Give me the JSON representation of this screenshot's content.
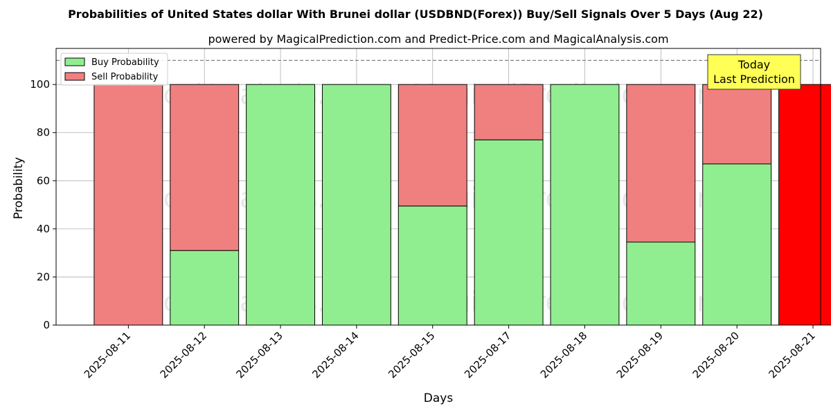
{
  "chart_data": {
    "type": "bar",
    "title": "Probabilities of United States dollar With Brunei dollar (USDBND(Forex)) Buy/Sell Signals Over 5 Days (Aug 22)",
    "subtitle": "powered by MagicalPrediction.com and Predict-Price.com and MagicalAnalysis.com",
    "xlabel": "Days",
    "ylabel": "Probability",
    "ylim": [
      0,
      115
    ],
    "yticks": [
      0,
      20,
      40,
      60,
      80,
      100
    ],
    "categories": [
      "2025-08-11",
      "2025-08-12",
      "2025-08-13",
      "2025-08-14",
      "2025-08-15",
      "2025-08-17",
      "2025-08-18",
      "2025-08-19",
      "2025-08-20",
      "2025-08-21"
    ],
    "series": [
      {
        "name": "Buy Probability",
        "color": "#90ee90",
        "values": [
          0,
          31,
          100,
          100,
          49.5,
          77,
          100,
          34.5,
          67,
          0
        ]
      },
      {
        "name": "Sell Probability",
        "color": "#f08080",
        "values": [
          100,
          69,
          0,
          0,
          50.5,
          23,
          0,
          65.5,
          33,
          100
        ]
      }
    ],
    "highlight": {
      "category": "2025-08-21",
      "color": "#ff0000"
    },
    "reference_line": {
      "y": 110,
      "style": "dashed"
    },
    "annotation": {
      "lines": [
        "Today",
        "Last Prediction"
      ],
      "background": "#ffff55"
    },
    "watermarks": [
      "MagicalAnalysis.com",
      "MagicalPrediction.com"
    ],
    "legend_position": "top-left",
    "grid": true
  }
}
